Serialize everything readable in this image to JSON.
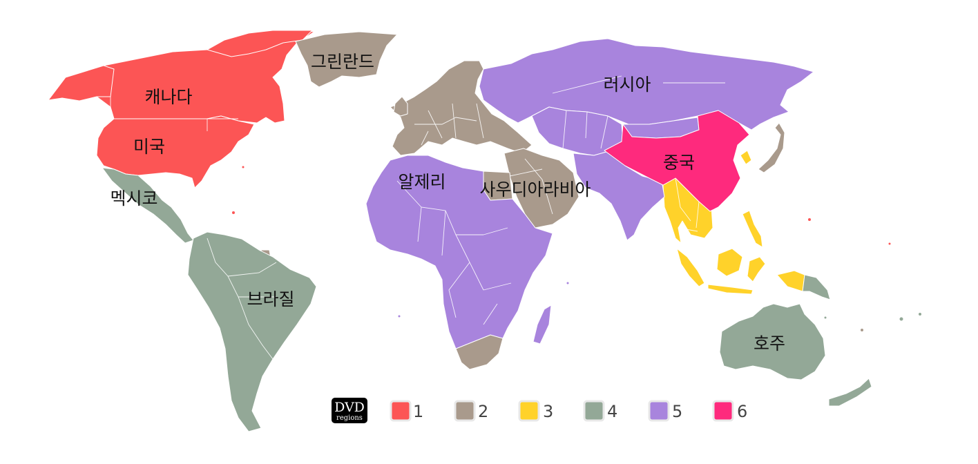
{
  "colors": {
    "region_1": "#fc5555",
    "region_2": "#a99a8c",
    "region_3": "#ffd22a",
    "region_4": "#93a897",
    "region_5": "#a884dd",
    "region_6": "#fe2a7d"
  },
  "labels": {
    "canada": "캐나다",
    "usa": "미국",
    "mexico": "멕시코",
    "greenland": "그린란드",
    "brazil": "브라질",
    "russia": "러시아",
    "china": "중국",
    "algeria": "알제리",
    "saudi_arabia": "사우디아라비아",
    "australia": "호주"
  },
  "legend": {
    "logo": {
      "title": "DVD",
      "subtitle": "regions"
    },
    "items": [
      {
        "label": "1",
        "color": "#fc5555"
      },
      {
        "label": "2",
        "color": "#a99a8c"
      },
      {
        "label": "3",
        "color": "#ffd22a"
      },
      {
        "label": "4",
        "color": "#93a897"
      },
      {
        "label": "5",
        "color": "#a884dd"
      },
      {
        "label": "6",
        "color": "#fe2a7d"
      }
    ]
  }
}
